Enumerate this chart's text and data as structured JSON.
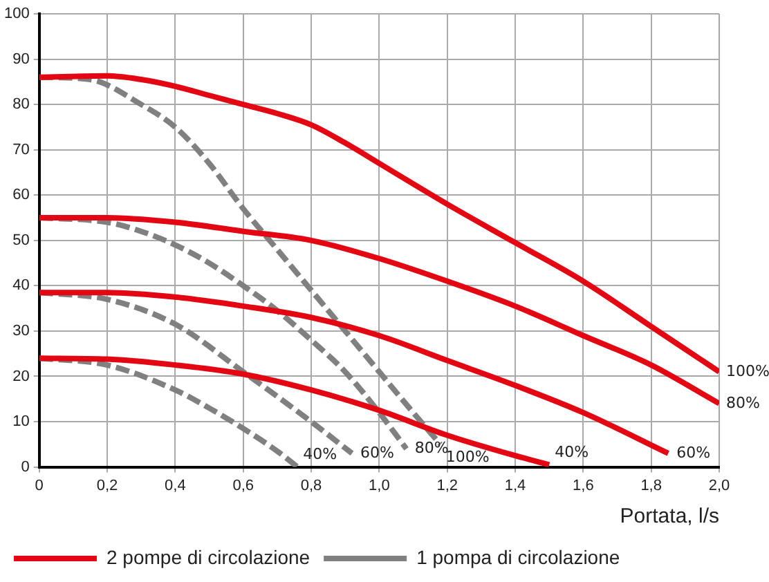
{
  "chart_data": {
    "type": "line",
    "xlabel": "Portata, l/s",
    "xlim": [
      0,
      2
    ],
    "ylim": [
      0,
      100
    ],
    "xticks": [
      0,
      {
        "value": 0.2,
        "label": "0,2"
      },
      {
        "value": 0.4,
        "label": "0,4"
      },
      {
        "value": 0.6,
        "label": "0,6"
      },
      {
        "value": 0.8,
        "label": "0,8"
      },
      {
        "value": 1,
        "label": "1,0"
      },
      {
        "value": 1.2,
        "label": "1,2"
      },
      {
        "value": 1.4,
        "label": "1,4"
      },
      {
        "value": 1.6,
        "label": "1,6"
      },
      {
        "value": 1.8,
        "label": "1,8"
      },
      {
        "value": 2,
        "label": "2,0"
      }
    ],
    "yticks": [
      0,
      10,
      20,
      30,
      40,
      50,
      60,
      70,
      80,
      90,
      100
    ],
    "grid": true,
    "legend": "bottom left",
    "marker": "none",
    "series": [
      {
        "name": "2 pompe di circolazione",
        "color": "#e30613",
        "line_style": "solid",
        "x": [
          0,
          0.2,
          0.3,
          0.4,
          0.5,
          0.6,
          0.7,
          0.8,
          0.9,
          1.0,
          1.2,
          1.4,
          1.6,
          1.8,
          2.0
        ],
        "values": [
          86,
          86.3,
          85.5,
          84,
          82,
          80,
          78,
          75.5,
          71.5,
          67,
          58,
          49.5,
          41,
          31,
          21
        ]
      },
      {
        "color": "#e30613",
        "line_style": "solid",
        "x": [
          0,
          0.2,
          0.4,
          0.6,
          0.8,
          1.0,
          1.2,
          1.4,
          1.6,
          1.8,
          2.0
        ],
        "values": [
          55,
          55,
          54,
          52,
          50,
          46,
          41,
          35.5,
          29,
          22.5,
          14
        ]
      },
      {
        "color": "#e30613",
        "line_style": "solid",
        "x": [
          0,
          0.2,
          0.4,
          0.6,
          0.8,
          1.0,
          1.2,
          1.4,
          1.6,
          1.85
        ],
        "values": [
          38.5,
          38.5,
          37.5,
          35.5,
          33,
          29,
          23.5,
          18,
          12,
          3
        ]
      },
      {
        "color": "#e30613",
        "line_style": "solid",
        "x": [
          0,
          0.2,
          0.4,
          0.6,
          0.8,
          1.0,
          1.2,
          1.4,
          1.5
        ],
        "values": [
          24,
          23.8,
          22.5,
          20.5,
          17,
          12.5,
          7,
          2.5,
          0.5
        ]
      },
      {
        "name": "1 pompa di circolazione",
        "color": "#808080",
        "line_style": "dashed",
        "x": [
          0,
          0.15,
          0.3,
          0.4,
          0.5,
          0.6,
          0.7,
          0.8,
          0.9,
          1.0,
          1.1,
          1.18
        ],
        "values": [
          86,
          85.5,
          80,
          75,
          67,
          57,
          48,
          39,
          30,
          21,
          12,
          5
        ]
      },
      {
        "color": "#808080",
        "line_style": "dashed",
        "x": [
          0,
          0.2,
          0.3,
          0.4,
          0.5,
          0.6,
          0.7,
          0.8,
          0.9,
          1.0,
          1.08
        ],
        "values": [
          55,
          54,
          52,
          49,
          45,
          40,
          34.5,
          28,
          21,
          12,
          4
        ]
      },
      {
        "color": "#808080",
        "line_style": "dashed",
        "x": [
          0,
          0.2,
          0.4,
          0.6,
          0.8,
          0.92
        ],
        "values": [
          38.5,
          37,
          31.5,
          21,
          10,
          3
        ]
      },
      {
        "color": "#808080",
        "line_style": "dashed",
        "x": [
          0,
          0.2,
          0.4,
          0.5,
          0.6,
          0.7,
          0.76
        ],
        "values": [
          24,
          22.5,
          17,
          13,
          8.5,
          3.5,
          0
        ]
      }
    ],
    "annotations": [
      {
        "text": "40%",
        "x": 0.76,
        "y": 0
      },
      {
        "text": "60%",
        "x": 0.92,
        "y": 3
      },
      {
        "text": "80%",
        "x": 1.08,
        "y": 4
      },
      {
        "text": "100%",
        "x": 1.18,
        "y": 5
      },
      {
        "text": "40%",
        "x": 1.5,
        "y": 0.5
      },
      {
        "text": "60%",
        "x": 1.85,
        "y": 3
      },
      {
        "text": "80%",
        "x": 2.0,
        "y": 14
      },
      {
        "text": "100%",
        "x": 2.0,
        "y": 21
      }
    ]
  }
}
